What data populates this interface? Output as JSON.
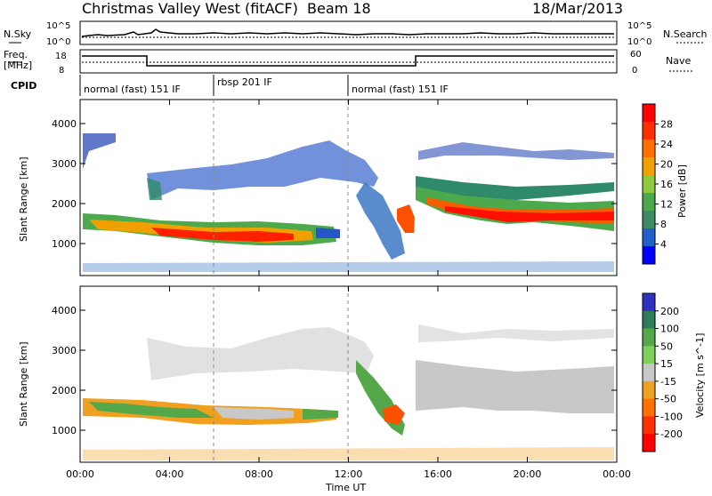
{
  "header": {
    "station": "Christmas Valley West (fitACF)",
    "beam": "Beam 18",
    "date": "18/Mar/2013"
  },
  "colors": {
    "ground_scatter": "#bfbfbf",
    "power_scale": [
      "#0000ff",
      "#2060c8",
      "#3d8a64",
      "#4ca84c",
      "#8ecb3c",
      "#f0a000",
      "#ff7000",
      "#ff3000",
      "#ff0000"
    ],
    "velocity_scale": [
      "#3030c0",
      "#2e7d5a",
      "#55a84a",
      "#7fd05a",
      "#c8c8c8",
      "#f0a020",
      "#ff7000",
      "#ff3000",
      "#ff0000"
    ]
  },
  "strip": {
    "nsky_label": "N.Sky",
    "nsky_ticks": [
      "10^5",
      "10^0"
    ],
    "nsearch_label": "N.Search",
    "freq_label_1": "Freq.",
    "freq_label_2": "[MHz]",
    "freq_ticks": [
      "18",
      "8"
    ],
    "nave_label": "Nave",
    "nave_ticks": [
      "60",
      "0"
    ],
    "cpid_label": "CPID",
    "modes": [
      "normal (fast) 151 IF",
      "rbsp 201 IF",
      "normal (fast) 151 IF"
    ]
  },
  "chart_data": [
    {
      "type": "heatmap",
      "panel": "Power",
      "xlabel": "Time UT",
      "ylabel": "Slant Range [km]",
      "x_ticks": [
        "00:00",
        "04:00",
        "08:00",
        "12:00",
        "16:00",
        "20:00",
        "00:00"
      ],
      "x_range_hours": [
        0,
        24
      ],
      "y_ticks": [
        1000,
        2000,
        3000,
        4000
      ],
      "ylim": [
        200,
        4600
      ],
      "colorbar_label": "Power [dB]",
      "colorbar_ticks": [
        4,
        8,
        12,
        16,
        20,
        24,
        28
      ],
      "colorbar_range": [
        0,
        32
      ]
    },
    {
      "type": "heatmap",
      "panel": "Velocity",
      "xlabel": "Time UT",
      "ylabel": "Slant Range [km]",
      "x_ticks": [
        "00:00",
        "04:00",
        "08:00",
        "12:00",
        "16:00",
        "20:00",
        "00:00"
      ],
      "x_range_hours": [
        0,
        24
      ],
      "y_ticks": [
        1000,
        2000,
        3000,
        4000
      ],
      "ylim": [
        200,
        4600
      ],
      "colorbar_label": "Velocity [m s^-1]",
      "colorbar_ticks": [
        200,
        100,
        50,
        15,
        -15,
        -50,
        -100,
        -200
      ]
    }
  ]
}
